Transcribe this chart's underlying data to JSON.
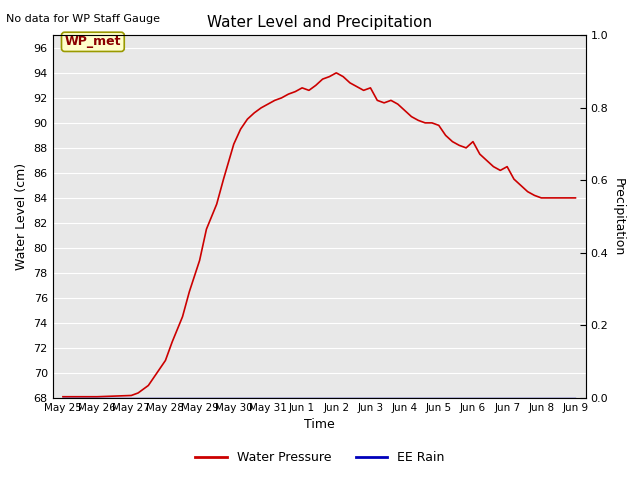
{
  "title": "Water Level and Precipitation",
  "top_left_text": "No data for WP Staff Gauge",
  "xlabel": "Time",
  "ylabel_left": "Water Level (cm)",
  "ylabel_right": "Precipitation",
  "ylim_left": [
    68,
    97
  ],
  "ylim_right": [
    0.0,
    1.0
  ],
  "yticks_left": [
    68,
    70,
    72,
    74,
    76,
    78,
    80,
    82,
    84,
    86,
    88,
    90,
    92,
    94,
    96
  ],
  "yticks_right": [
    0.0,
    0.2,
    0.4,
    0.6,
    0.8,
    1.0
  ],
  "background_color": "#e8e8e8",
  "line_color_wp": "#cc0000",
  "line_color_rain": "#0000bb",
  "legend_wp": "Water Pressure",
  "legend_rain": "EE Rain",
  "annotation_label": "WP_met",
  "x_labels": [
    "May 25",
    "May 26",
    "May 27",
    "May 28",
    "May 29",
    "May 30",
    "May 31",
    "Jun 1",
    "Jun 2",
    "Jun 3",
    "Jun 4",
    "Jun 5",
    "Jun 6",
    "Jun 7",
    "Jun 8",
    "Jun 9"
  ],
  "x_wp": [
    0,
    0.2,
    0.5,
    1.0,
    1.5,
    2.0,
    2.2,
    2.5,
    2.7,
    3.0,
    3.2,
    3.5,
    3.7,
    4.0,
    4.2,
    4.5,
    4.7,
    5.0,
    5.2,
    5.4,
    5.6,
    5.8,
    6.0,
    6.2,
    6.4,
    6.6,
    6.8,
    7.0,
    7.2,
    7.4,
    7.6,
    7.8,
    8.0,
    8.2,
    8.4,
    8.6,
    8.8,
    9.0,
    9.2,
    9.4,
    9.6,
    9.8,
    10.0,
    10.2,
    10.4,
    10.6,
    10.8,
    11.0,
    11.2,
    11.4,
    11.6,
    11.8,
    12.0,
    12.2,
    12.4,
    12.6,
    12.8,
    13.0,
    13.2,
    13.4,
    13.6,
    13.8,
    14.0,
    15.0
  ],
  "y_wp": [
    68.1,
    68.1,
    68.1,
    68.1,
    68.15,
    68.2,
    68.4,
    69.0,
    69.8,
    71.0,
    72.5,
    74.5,
    76.5,
    79.0,
    81.5,
    83.5,
    85.5,
    88.3,
    89.5,
    90.3,
    90.8,
    91.2,
    91.5,
    91.8,
    92.0,
    92.3,
    92.5,
    92.8,
    92.6,
    93.0,
    93.5,
    93.7,
    94.0,
    93.7,
    93.2,
    92.9,
    92.6,
    92.8,
    91.8,
    91.6,
    91.8,
    91.5,
    91.0,
    90.5,
    90.2,
    90.0,
    90.0,
    89.8,
    89.0,
    88.5,
    88.2,
    88.0,
    88.5,
    87.5,
    87.0,
    86.5,
    86.2,
    86.5,
    85.5,
    85.0,
    84.5,
    84.2,
    84.0,
    84.0
  ],
  "x_rain": [
    0,
    1,
    2,
    3,
    4,
    5,
    6,
    7,
    8,
    9,
    10,
    11,
    12,
    13,
    14,
    15
  ],
  "y_rain": [
    0.0,
    0.0,
    0.0,
    0.0,
    0.0,
    0.0,
    0.0,
    0.0,
    0.0,
    0.0,
    0.0,
    0.0,
    0.0,
    0.0,
    0.0,
    0.0
  ]
}
